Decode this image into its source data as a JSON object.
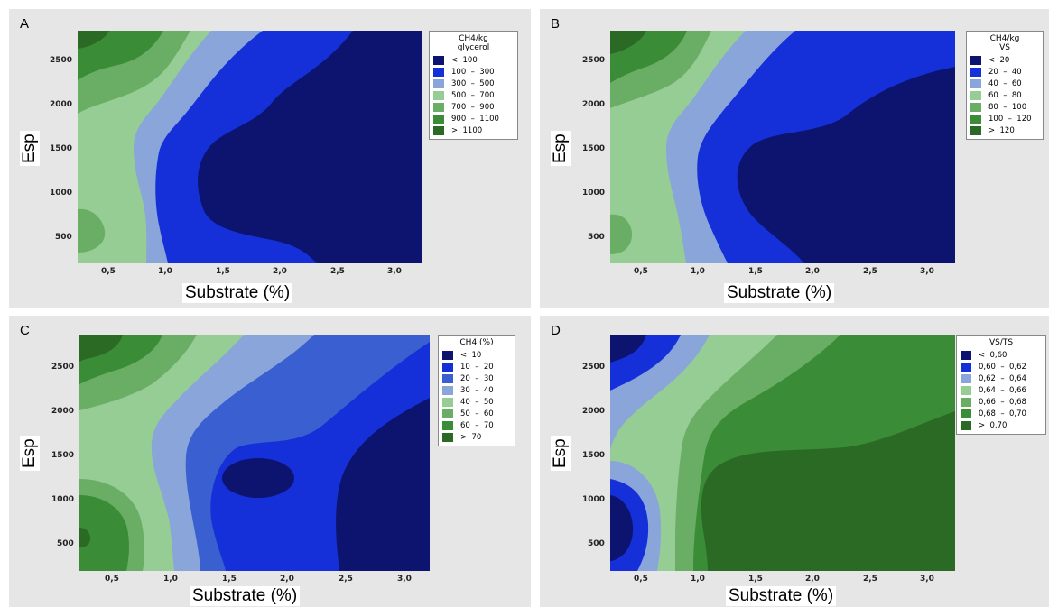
{
  "colors": {
    "levels": [
      "#0d1470",
      "#1530d8",
      "#3a5fd0",
      "#8aa5d9",
      "#95cd94",
      "#6aae65",
      "#3b8c37",
      "#2a6a24"
    ],
    "panel_bg": "#e6e6e6"
  },
  "chart_data": [
    {
      "panel": "A",
      "type": "contour",
      "xlabel": "Substrate (%)",
      "ylabel": "Esp",
      "xlim": [
        0.2,
        3.2
      ],
      "ylim": [
        220,
        2850
      ],
      "xticks": [
        "0,5",
        "1,0",
        "1,5",
        "2,0",
        "2,5",
        "3,0"
      ],
      "yticks": [
        "500",
        "1000",
        "1500",
        "2000",
        "2500"
      ],
      "legend": {
        "title": [
          "CH4/kg",
          "glycerol"
        ],
        "items": [
          {
            "range": "<  100",
            "color": "#0d1470"
          },
          {
            "range": "100  –  300",
            "color": "#1530d8"
          },
          {
            "range": "300  –  500",
            "color": "#8aa5d9"
          },
          {
            "range": "500  –  700",
            "color": "#95cd94"
          },
          {
            "range": "700  –  900",
            "color": "#6aae65"
          },
          {
            "range": "900  –  1100",
            "color": "#3b8c37"
          },
          {
            "range": ">  1100",
            "color": "#2a6a24"
          }
        ]
      }
    },
    {
      "panel": "B",
      "type": "contour",
      "xlabel": "Substrate (%)",
      "ylabel": "Esp",
      "xlim": [
        0.2,
        3.2
      ],
      "ylim": [
        220,
        2850
      ],
      "xticks": [
        "0,5",
        "1,0",
        "1,5",
        "2,0",
        "2,5",
        "3,0"
      ],
      "yticks": [
        "500",
        "1000",
        "1500",
        "2000",
        "2500"
      ],
      "legend": {
        "title": [
          "CH4/kg",
          "VS"
        ],
        "items": [
          {
            "range": "<  20",
            "color": "#0d1470"
          },
          {
            "range": "20  –  40",
            "color": "#1530d8"
          },
          {
            "range": "40  –  60",
            "color": "#8aa5d9"
          },
          {
            "range": "60  –  80",
            "color": "#95cd94"
          },
          {
            "range": "80  –  100",
            "color": "#6aae65"
          },
          {
            "range": "100  –  120",
            "color": "#3b8c37"
          },
          {
            "range": ">  120",
            "color": "#2a6a24"
          }
        ]
      }
    },
    {
      "panel": "C",
      "type": "contour",
      "xlabel": "Substrate (%)",
      "ylabel": "Esp",
      "xlim": [
        0.2,
        3.2
      ],
      "ylim": [
        220,
        2850
      ],
      "xticks": [
        "0,5",
        "1,0",
        "1,5",
        "2,0",
        "2,5",
        "3,0"
      ],
      "yticks": [
        "500",
        "1000",
        "1500",
        "2000",
        "2500"
      ],
      "legend": {
        "title": [
          "CH4 (%)"
        ],
        "items": [
          {
            "range": "<  10",
            "color": "#0d1470"
          },
          {
            "range": "10  –  20",
            "color": "#1530d8"
          },
          {
            "range": "20  –  30",
            "color": "#3a5fd0"
          },
          {
            "range": "30  –  40",
            "color": "#8aa5d9"
          },
          {
            "range": "40  –  50",
            "color": "#95cd94"
          },
          {
            "range": "50  –  60",
            "color": "#6aae65"
          },
          {
            "range": "60  –  70",
            "color": "#3b8c37"
          },
          {
            "range": ">  70",
            "color": "#2a6a24"
          }
        ]
      }
    },
    {
      "panel": "D",
      "type": "contour",
      "xlabel": "Substrate (%)",
      "ylabel": "Esp",
      "xlim": [
        0.2,
        3.2
      ],
      "ylim": [
        220,
        2850
      ],
      "xticks": [
        "0,5",
        "1,0",
        "1,5",
        "2,0",
        "2,5",
        "3,0"
      ],
      "yticks": [
        "500",
        "1000",
        "1500",
        "2000",
        "2500"
      ],
      "legend": {
        "title": [
          "VS/TS"
        ],
        "items": [
          {
            "range": "<  0,60",
            "color": "#0d1470"
          },
          {
            "range": "0,60  –  0,62",
            "color": "#1530d8"
          },
          {
            "range": "0,62  –  0,64",
            "color": "#8aa5d9"
          },
          {
            "range": "0,64  –  0,66",
            "color": "#95cd94"
          },
          {
            "range": "0,66  –  0,68",
            "color": "#6aae65"
          },
          {
            "range": "0,68  –  0,70",
            "color": "#3b8c37"
          },
          {
            "range": ">  0,70",
            "color": "#2a6a24"
          }
        ]
      }
    }
  ]
}
